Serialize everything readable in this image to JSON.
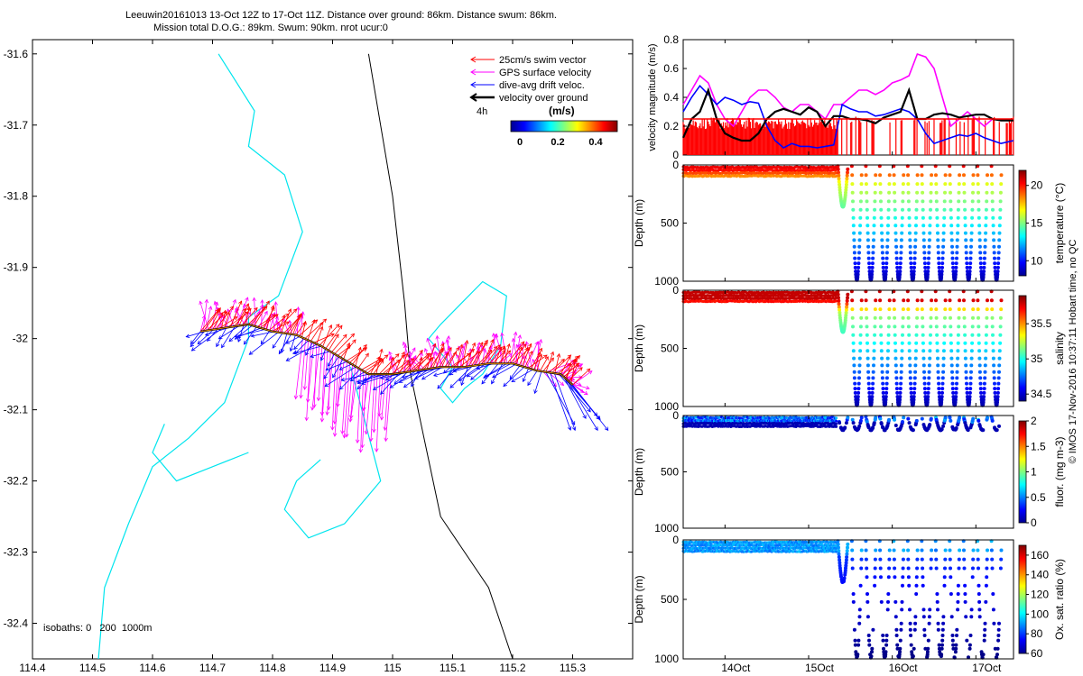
{
  "title": {
    "line1": "Leeuwin20161013 13-Oct 12Z to 17-Oct 11Z. Distance over ground: 86km. Distance swum: 86km.",
    "line2": "Mission total D.O.G.: 89km. Swum: 90km. nrot ucur:0"
  },
  "watermark": "© IMOS 17-Nov-2016 10:37:11 Hobart time, no QC",
  "colors": {
    "swim": "#ff0000",
    "gps": "#ff00ff",
    "drift": "#0000ff",
    "ground": "#000000",
    "isobath200": "#00e5ee",
    "isobath1000": "#000000"
  },
  "chart_data": [
    {
      "type": "map",
      "xlim": [
        114.4,
        115.4
      ],
      "ylim": [
        -32.45,
        -31.58
      ],
      "x_ticks": [
        "114.4",
        "114.5",
        "114.6",
        "114.7",
        "114.8",
        "114.9",
        "115",
        "115.1",
        "115.2",
        "115.3"
      ],
      "y_ticks": [
        "-31.6",
        "-31.7",
        "-31.8",
        "-31.9",
        "-32",
        "-32.1",
        "-32.2",
        "-32.3",
        "-32.4"
      ],
      "legend": [
        {
          "label": "25cm/s swim vector",
          "color": "#ff0000"
        },
        {
          "label": "GPS surface velocity",
          "color": "#ff00ff"
        },
        {
          "label": "dive-avg drift veloc.",
          "color": "#0000ff"
        },
        {
          "label": "velocity over ground",
          "color": "#000000"
        }
      ],
      "legend_placement": "top-right",
      "interval_label": "4h",
      "colorbar_label": "(m/s)",
      "colorbar_ticks": [
        "0",
        "0.2",
        "0.4"
      ],
      "isobath_label": "isobaths: 0   200  1000m",
      "track": [
        [
          114.68,
          -31.99
        ],
        [
          114.72,
          -31.985
        ],
        [
          114.76,
          -31.98
        ],
        [
          114.8,
          -31.99
        ],
        [
          114.84,
          -31.995
        ],
        [
          114.88,
          -32.01
        ],
        [
          114.92,
          -32.03
        ],
        [
          114.96,
          -32.05
        ],
        [
          115.0,
          -32.05
        ],
        [
          115.04,
          -32.045
        ],
        [
          115.08,
          -32.04
        ],
        [
          115.12,
          -32.04
        ],
        [
          115.16,
          -32.035
        ],
        [
          115.2,
          -32.035
        ],
        [
          115.24,
          -32.045
        ],
        [
          115.28,
          -32.05
        ],
        [
          115.3,
          -32.065
        ]
      ],
      "isobath_200": [
        [
          114.51,
          -32.45
        ],
        [
          114.52,
          -32.35
        ],
        [
          114.56,
          -32.26
        ],
        [
          114.6,
          -32.18
        ],
        [
          114.66,
          -32.14
        ],
        [
          114.72,
          -32.09
        ],
        [
          114.76,
          -32.0
        ],
        [
          114.76,
          -31.97
        ],
        [
          114.81,
          -31.94
        ],
        [
          114.85,
          -31.85
        ],
        [
          114.82,
          -31.77
        ],
        [
          114.76,
          -31.73
        ],
        [
          114.77,
          -31.68
        ],
        [
          114.71,
          -31.6
        ]
      ],
      "isobath_1000": [
        [
          115.2,
          -32.45
        ],
        [
          115.16,
          -32.35
        ],
        [
          115.08,
          -32.25
        ],
        [
          115.05,
          -32.13
        ],
        [
          115.03,
          -32.05
        ],
        [
          115.02,
          -31.95
        ],
        [
          115.0,
          -31.8
        ],
        [
          114.98,
          -31.7
        ],
        [
          114.96,
          -31.6
        ]
      ],
      "deep_loop": [
        [
          115.08,
          -31.98
        ],
        [
          115.15,
          -31.92
        ],
        [
          115.19,
          -31.94
        ],
        [
          115.18,
          -32.01
        ],
        [
          115.15,
          -32.05
        ],
        [
          115.12,
          -32.07
        ],
        [
          115.1,
          -32.09
        ],
        [
          115.08,
          -32.07
        ],
        [
          115.1,
          -32.04
        ],
        [
          115.06,
          -32.0
        ]
      ]
    },
    {
      "type": "line",
      "ylabel": "velocity magnitude (m/s)",
      "ylim": [
        0,
        0.8
      ],
      "y_ticks": [
        "0",
        "0.2",
        "0.4",
        "0.6",
        "0.8"
      ],
      "x_ticks": [
        "14Oct",
        "15Oct",
        "16Oct",
        "17Oct"
      ],
      "xlim": [
        13.5,
        17.45
      ],
      "series": [
        {
          "color": "#ff00ff",
          "x": [
            13.5,
            13.6,
            13.7,
            13.8,
            13.9,
            14.0,
            14.1,
            14.2,
            14.3,
            14.4,
            14.5,
            14.6,
            14.7,
            14.8,
            14.9,
            15.0,
            15.1,
            15.2,
            15.3,
            15.4,
            15.5,
            15.6,
            15.7,
            15.8,
            15.9,
            16.0,
            16.1,
            16.2,
            16.3,
            16.4,
            16.5,
            16.6,
            16.7,
            16.8,
            16.9,
            17.0,
            17.1,
            17.2,
            17.3,
            17.45
          ],
          "y": [
            0.35,
            0.45,
            0.55,
            0.5,
            0.35,
            0.25,
            0.2,
            0.3,
            0.4,
            0.45,
            0.45,
            0.4,
            0.33,
            0.3,
            0.35,
            0.35,
            0.3,
            0.25,
            0.35,
            0.35,
            0.4,
            0.45,
            0.45,
            0.42,
            0.45,
            0.5,
            0.52,
            0.55,
            0.7,
            0.68,
            0.6,
            0.4,
            0.2,
            0.25,
            0.3,
            0.25,
            0.2,
            0.25,
            0.24,
            0.24
          ]
        },
        {
          "color": "#0000ff",
          "x": [
            13.5,
            13.6,
            13.7,
            13.8,
            13.9,
            14.0,
            14.1,
            14.2,
            14.3,
            14.4,
            14.5,
            14.6,
            14.7,
            14.8,
            14.9,
            15.0,
            15.1,
            15.2,
            15.3,
            15.4,
            15.5,
            15.6,
            15.7,
            15.8,
            15.9,
            16.0,
            16.1,
            16.2,
            16.3,
            16.4,
            16.5,
            16.6,
            16.7,
            16.8,
            16.9,
            17.0,
            17.1,
            17.2,
            17.3,
            17.45
          ],
          "y": [
            0.3,
            0.4,
            0.48,
            0.42,
            0.35,
            0.4,
            0.38,
            0.35,
            0.37,
            0.36,
            0.2,
            0.1,
            0.05,
            0.08,
            0.06,
            0.06,
            0.05,
            0.06,
            0.07,
            0.35,
            0.32,
            0.3,
            0.3,
            0.27,
            0.28,
            0.3,
            0.32,
            0.3,
            0.25,
            0.15,
            0.08,
            0.1,
            0.12,
            0.14,
            0.13,
            0.15,
            0.12,
            0.1,
            0.08,
            0.1
          ]
        },
        {
          "color": "#000000",
          "x": [
            13.5,
            13.6,
            13.7,
            13.8,
            13.9,
            14.0,
            14.1,
            14.2,
            14.3,
            14.4,
            14.5,
            14.6,
            14.7,
            14.8,
            14.9,
            15.0,
            15.1,
            15.2,
            15.3,
            15.4,
            15.5,
            15.6,
            15.7,
            15.8,
            15.9,
            16.0,
            16.1,
            16.2,
            16.3,
            16.4,
            16.5,
            16.6,
            16.7,
            16.8,
            16.9,
            17.0,
            17.1,
            17.2,
            17.3,
            17.45
          ],
          "y": [
            0.12,
            0.25,
            0.3,
            0.45,
            0.25,
            0.15,
            0.12,
            0.1,
            0.1,
            0.15,
            0.25,
            0.3,
            0.32,
            0.3,
            0.28,
            0.33,
            0.3,
            0.2,
            0.27,
            0.27,
            0.25,
            0.25,
            0.24,
            0.22,
            0.26,
            0.28,
            0.3,
            0.45,
            0.25,
            0.25,
            0.28,
            0.29,
            0.28,
            0.26,
            0.27,
            0.28,
            0.28,
            0.25,
            0.24,
            0.24
          ]
        },
        {
          "color": "#ff0000",
          "x": [
            13.5,
            13.6,
            13.7,
            13.8,
            13.9,
            14.0,
            14.1,
            14.2,
            14.3,
            14.4,
            14.5,
            14.6,
            14.7,
            14.8,
            14.9,
            15.0,
            15.1,
            15.2,
            15.3,
            15.4,
            15.5,
            15.6,
            15.7,
            15.8,
            15.9,
            16.0,
            16.1,
            16.2,
            16.3,
            16.4,
            16.5,
            16.6,
            16.7,
            16.8,
            16.9,
            17.0,
            17.1,
            17.2,
            17.3,
            17.45
          ],
          "y": [
            0.2,
            0.25,
            0.25,
            0.25,
            0.25,
            0.25,
            0.25,
            0.25,
            0.25,
            0.25,
            0.25,
            0.25,
            0.25,
            0.25,
            0.25,
            0.25,
            0.25,
            0.25,
            0.25,
            0.25,
            0.25,
            0.25,
            0.25,
            0.25,
            0.25,
            0.25,
            0.25,
            0.25,
            0.25,
            0.25,
            0.25,
            0.25,
            0.25,
            0.25,
            0.25,
            0.25,
            0.25,
            0.25,
            0.25,
            0.25
          ]
        }
      ]
    },
    {
      "type": "scatter",
      "ylabel": "Depth (m)",
      "ylim": [
        1000,
        0
      ],
      "y_ticks": [
        "0",
        "500",
        "1000"
      ],
      "colorbar_label": "temperature (°C)",
      "colorbar_ticks": [
        "10",
        "15",
        "20"
      ],
      "clim": [
        8,
        22
      ]
    },
    {
      "type": "scatter",
      "ylabel": "Depth (m)",
      "ylim": [
        1000,
        0
      ],
      "y_ticks": [
        "0",
        "500",
        "1000"
      ],
      "colorbar_label": "salinity",
      "colorbar_ticks": [
        "34.5",
        "35",
        "35.5"
      ],
      "clim": [
        34.4,
        35.9
      ]
    },
    {
      "type": "scatter",
      "ylabel": "Depth (m)",
      "ylim": [
        1000,
        0
      ],
      "y_ticks": [
        "0",
        "500",
        "1000"
      ],
      "colorbar_label": "fluor. (mg m-3)",
      "colorbar_ticks": [
        "0",
        "0.5",
        "1",
        "1.5",
        "2"
      ],
      "clim": [
        0,
        2
      ]
    },
    {
      "type": "scatter",
      "ylabel": "Depth (m)",
      "ylim": [
        1000,
        0
      ],
      "y_ticks": [
        "0",
        "500",
        "1000"
      ],
      "colorbar_label": "Ox. sat. ratio (%)",
      "colorbar_ticks": [
        "60",
        "80",
        "100",
        "120",
        "140",
        "160"
      ],
      "clim": [
        60,
        170
      ],
      "x_ticks": [
        "14Oct",
        "15Oct",
        "16Oct",
        "17Oct"
      ]
    }
  ]
}
